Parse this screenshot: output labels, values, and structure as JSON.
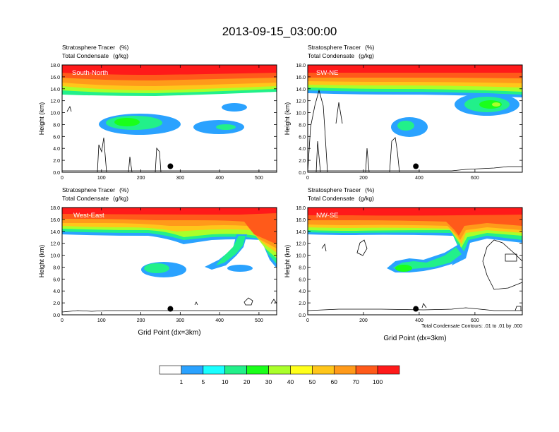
{
  "title": "2013-09-15_03:00:00",
  "axis_label_y": "Height (km)",
  "axis_label_x": "Grid Point (dx=3km)",
  "field_label_1": "Stratosphere Tracer",
  "field_unit_1": "(%)",
  "field_label_2": "Total Condensate",
  "field_unit_2": "(g/kg)",
  "contour_note": "Total Condensate Contours: .01 to .01 by .000",
  "colors": {
    "red": "#ff1a1a",
    "orange_red": "#ff5a1a",
    "orange": "#ff9a1a",
    "gold": "#ffc61a",
    "yellow": "#ffff1a",
    "yellow_green": "#aaff2a",
    "green": "#1aff1a",
    "mint": "#22f08a",
    "cyan": "#1affff",
    "blue": "#2aa2ff"
  },
  "chart_data": [
    {
      "type": "contour-fill",
      "panel_label": "South-North",
      "x": {
        "min": 0,
        "max": 545,
        "ticks": [
          0,
          100,
          200,
          300,
          400,
          500
        ]
      },
      "y": {
        "min": 0,
        "max": 18,
        "ticks": [
          "0.0",
          "2.0",
          "4.0",
          "6.0",
          "8.0",
          "10.0",
          "12.0",
          "14.0",
          "16.0",
          "18.0"
        ]
      },
      "marker_x": 275,
      "marker_y": 1.0
    },
    {
      "type": "contour-fill",
      "panel_label": "SW-NE",
      "x": {
        "min": 0,
        "max": 770,
        "ticks": [
          0,
          200,
          400,
          600
        ]
      },
      "y": {
        "min": 0,
        "max": 18,
        "ticks": [
          "0.0",
          "2.0",
          "4.0",
          "6.0",
          "8.0",
          "10.0",
          "12.0",
          "14.0",
          "16.0",
          "18.0"
        ]
      },
      "marker_x": 388,
      "marker_y": 1.0
    },
    {
      "type": "contour-fill",
      "panel_label": "West-East",
      "x": {
        "min": 0,
        "max": 545,
        "ticks": [
          0,
          100,
          200,
          300,
          400,
          500
        ]
      },
      "y": {
        "min": 0,
        "max": 18,
        "ticks": [
          "0.0",
          "2.0",
          "4.0",
          "6.0",
          "8.0",
          "10.0",
          "12.0",
          "14.0",
          "16.0",
          "18.0"
        ]
      },
      "marker_x": 275,
      "marker_y": 1.0
    },
    {
      "type": "contour-fill",
      "panel_label": "NW-SE",
      "x": {
        "min": 0,
        "max": 770,
        "ticks": [
          0,
          200,
          400,
          600
        ]
      },
      "y": {
        "min": 0,
        "max": 18,
        "ticks": [
          "0.0",
          "2.0",
          "4.0",
          "6.0",
          "8.0",
          "10.0",
          "12.0",
          "14.0",
          "16.0",
          "18.0"
        ]
      },
      "marker_x": 388,
      "marker_y": 1.0
    }
  ],
  "legend": {
    "label": "Stratosphere Tracer (%)",
    "levels": [
      "1",
      "5",
      "10",
      "20",
      "30",
      "40",
      "50",
      "60",
      "70",
      "100"
    ],
    "colors": [
      "#ffffff",
      "#2aa2ff",
      "#1affff",
      "#22f08a",
      "#1aff1a",
      "#aaff2a",
      "#ffff1a",
      "#ffc61a",
      "#ff9a1a",
      "#ff5a1a",
      "#ff1a1a"
    ]
  }
}
